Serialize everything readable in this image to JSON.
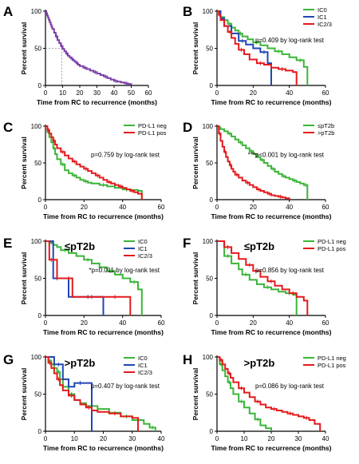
{
  "colors": {
    "purple": "#7b3fa6",
    "green": "#3bb539",
    "blue": "#2146b4",
    "red": "#e41a1c",
    "axis": "#000000",
    "guide": "#888888"
  },
  "chart_data": [
    {
      "type": "line",
      "letter": "A",
      "title": "",
      "subtitle": "",
      "xlabel": "Time from RC to recurrence (months)",
      "ylabel": "Percent survival",
      "xlim": [
        0,
        60
      ],
      "ylim": [
        0,
        100
      ],
      "xticks": [
        "0",
        "10",
        "20",
        "30",
        "40",
        "50",
        "60"
      ],
      "yticks": [
        "0",
        "50",
        "100"
      ],
      "legend": [],
      "annotation": "",
      "series": [
        {
          "name": "",
          "color": "purple",
          "x": [
            0,
            0.5,
            1,
            1.5,
            2,
            2.5,
            3,
            3.5,
            4,
            5,
            6,
            7,
            8,
            9,
            10,
            11,
            12,
            13,
            14,
            15,
            16,
            17,
            18,
            19,
            20,
            22,
            24,
            26,
            28,
            30,
            32,
            34,
            36,
            38,
            40,
            42,
            44,
            46,
            48,
            50
          ],
          "y": [
            100,
            97,
            94,
            91,
            88,
            85,
            82,
            79,
            76,
            71,
            66,
            61,
            57,
            53,
            49,
            46,
            43,
            40,
            38,
            36,
            34,
            32,
            30,
            28,
            26,
            24,
            22,
            20,
            18,
            16,
            14,
            12,
            10,
            8,
            6,
            5,
            4,
            3,
            2,
            0
          ]
        }
      ],
      "median_guide": {
        "x": 9.5,
        "y": 50
      }
    },
    {
      "type": "line",
      "letter": "B",
      "title": "",
      "subtitle": "",
      "xlabel": "Time from RC to recurrence (months)",
      "ylabel": "Percent survival",
      "xlim": [
        0,
        60
      ],
      "ylim": [
        0,
        100
      ],
      "xticks": [
        "0",
        "20",
        "40",
        "60"
      ],
      "yticks": [
        "0",
        "50",
        "100"
      ],
      "legend": [
        "IC0",
        "IC1",
        "IC2/3"
      ],
      "annotation": "p=0.409 by log-rank test",
      "series": [
        {
          "name": "IC0",
          "color": "green",
          "x": [
            0,
            1,
            2,
            4,
            6,
            8,
            10,
            12,
            14,
            17,
            20,
            24,
            28,
            32,
            36,
            40,
            44,
            48,
            50
          ],
          "y": [
            100,
            96,
            92,
            88,
            83,
            78,
            74,
            70,
            66,
            62,
            58,
            54,
            50,
            46,
            42,
            38,
            34,
            25,
            0
          ]
        },
        {
          "name": "IC1",
          "color": "blue",
          "x": [
            0,
            2,
            4,
            8,
            12,
            16,
            20,
            24,
            28,
            30
          ],
          "y": [
            100,
            90,
            80,
            70,
            60,
            55,
            50,
            45,
            30,
            0
          ]
        },
        {
          "name": "IC2/3",
          "color": "red",
          "x": [
            0,
            1,
            2,
            4,
            6,
            8,
            10,
            12,
            15,
            18,
            22,
            26,
            30,
            34,
            38,
            42,
            44
          ],
          "y": [
            100,
            95,
            88,
            80,
            72,
            64,
            56,
            48,
            42,
            35,
            30,
            28,
            24,
            22,
            20,
            18,
            0
          ]
        }
      ]
    },
    {
      "type": "line",
      "letter": "C",
      "title": "",
      "subtitle": "",
      "xlabel": "Time from RC to recurrence (months)",
      "ylabel": "Percent survival",
      "xlim": [
        0,
        60
      ],
      "ylim": [
        0,
        100
      ],
      "xticks": [
        "0",
        "20",
        "40",
        "60"
      ],
      "yticks": [
        "0",
        "50",
        "100"
      ],
      "legend": [
        "PD-L1 neg",
        "PD-L1 pos"
      ],
      "annotation": "p=0.759 by log-rank test",
      "series": [
        {
          "name": "PD-L1 neg",
          "color": "green",
          "x": [
            0,
            1,
            2,
            3,
            4,
            5,
            6,
            8,
            10,
            12,
            14,
            16,
            18,
            20,
            22,
            24,
            28,
            32,
            36,
            40,
            44,
            48,
            50
          ],
          "y": [
            100,
            92,
            85,
            78,
            70,
            62,
            55,
            48,
            40,
            36,
            33,
            30,
            27,
            25,
            23,
            22,
            20,
            18,
            16,
            14,
            13,
            12,
            0
          ]
        },
        {
          "name": "PD-L1 pos",
          "color": "red",
          "x": [
            0,
            1,
            2,
            3,
            4,
            5,
            6,
            8,
            10,
            12,
            14,
            16,
            18,
            20,
            22,
            24,
            26,
            28,
            30,
            32,
            34,
            36,
            38,
            40,
            42,
            44,
            46,
            48,
            50
          ],
          "y": [
            100,
            95,
            90,
            85,
            80,
            75,
            70,
            65,
            60,
            56,
            52,
            48,
            45,
            42,
            39,
            36,
            33,
            30,
            27,
            24,
            22,
            20,
            18,
            16,
            14,
            12,
            10,
            8,
            0
          ]
        }
      ]
    },
    {
      "type": "line",
      "letter": "D",
      "title": "",
      "subtitle": "",
      "xlabel": "Time from RC to recurrence (months)",
      "ylabel": "Percent survival",
      "xlim": [
        0,
        60
      ],
      "ylim": [
        0,
        100
      ],
      "xticks": [
        "0",
        "20",
        "40",
        "60"
      ],
      "yticks": [
        "0",
        "50",
        "100"
      ],
      "legend": [
        "≤pT2b",
        ">pT2b"
      ],
      "annotation": "***p<0.001 by log-rank test",
      "series": [
        {
          "name": "≤pT2b",
          "color": "green",
          "x": [
            0,
            1,
            2,
            4,
            6,
            8,
            10,
            12,
            14,
            16,
            18,
            20,
            22,
            24,
            26,
            28,
            30,
            32,
            34,
            36,
            38,
            40,
            42,
            44,
            46,
            48,
            50
          ],
          "y": [
            100,
            98,
            96,
            93,
            90,
            86,
            82,
            78,
            74,
            70,
            66,
            62,
            58,
            54,
            50,
            46,
            42,
            38,
            35,
            32,
            30,
            28,
            26,
            24,
            22,
            20,
            0
          ]
        },
        {
          "name": ">pT2b",
          "color": "red",
          "x": [
            0,
            1,
            2,
            3,
            4,
            5,
            6,
            7,
            8,
            9,
            10,
            12,
            14,
            16,
            18,
            20,
            22,
            24,
            26,
            28,
            30,
            32,
            34,
            36,
            38,
            40
          ],
          "y": [
            100,
            90,
            80,
            72,
            65,
            58,
            52,
            47,
            42,
            38,
            34,
            30,
            26,
            23,
            20,
            17,
            14,
            12,
            10,
            8,
            6,
            5,
            4,
            3,
            2,
            0
          ]
        }
      ]
    },
    {
      "type": "line",
      "letter": "E",
      "title": "≤pT2b",
      "subtitle": "",
      "xlabel": "Time from RC to recurrence (months)",
      "ylabel": "Percent survival",
      "xlim": [
        0,
        60
      ],
      "ylim": [
        0,
        100
      ],
      "xticks": [
        "0",
        "20",
        "40",
        "60"
      ],
      "yticks": [
        "0",
        "50",
        "100"
      ],
      "legend": [
        "IC0",
        "IC1",
        "IC2/3"
      ],
      "annotation": "*p=0.011 by log-rank test",
      "series": [
        {
          "name": "IC0",
          "color": "green",
          "x": [
            0,
            2,
            4,
            6,
            8,
            12,
            16,
            20,
            24,
            28,
            32,
            36,
            40,
            44,
            48,
            50
          ],
          "y": [
            100,
            98,
            95,
            92,
            88,
            84,
            80,
            75,
            70,
            65,
            60,
            55,
            50,
            45,
            35,
            0
          ]
        },
        {
          "name": "IC1",
          "color": "blue",
          "x": [
            0,
            4,
            8,
            12,
            20,
            24,
            30
          ],
          "y": [
            100,
            50,
            50,
            25,
            25,
            25,
            0
          ]
        },
        {
          "name": "IC2/3",
          "color": "red",
          "x": [
            0,
            2,
            4,
            6,
            10,
            14,
            18,
            22,
            26,
            30,
            34,
            38,
            42,
            44
          ],
          "y": [
            100,
            75,
            75,
            50,
            50,
            25,
            25,
            25,
            25,
            25,
            25,
            25,
            25,
            0
          ]
        }
      ]
    },
    {
      "type": "line",
      "letter": "F",
      "title": "≤pT2b",
      "subtitle": "",
      "xlabel": "Time from RC to recurrence (months)",
      "ylabel": "Percent survival",
      "xlim": [
        0,
        60
      ],
      "ylim": [
        0,
        100
      ],
      "xticks": [
        "0",
        "20",
        "40",
        "60"
      ],
      "yticks": [
        "0",
        "50",
        "100"
      ],
      "legend": [
        "PD-L1 neg",
        "PD-L1 pos"
      ],
      "annotation": "p=0.856 by log-rank test",
      "series": [
        {
          "name": "PD-L1 neg",
          "color": "green",
          "x": [
            0,
            4,
            8,
            12,
            14,
            18,
            22,
            26,
            30,
            34,
            38,
            42,
            44
          ],
          "y": [
            100,
            80,
            70,
            62,
            55,
            48,
            42,
            38,
            35,
            32,
            30,
            28,
            0
          ]
        },
        {
          "name": "PD-L1 pos",
          "color": "red",
          "x": [
            0,
            4,
            8,
            12,
            16,
            20,
            24,
            28,
            32,
            36,
            40,
            44,
            48,
            50
          ],
          "y": [
            100,
            92,
            84,
            76,
            68,
            60,
            52,
            46,
            40,
            35,
            30,
            25,
            20,
            0
          ]
        }
      ]
    },
    {
      "type": "line",
      "letter": "G",
      "title": ">pT2b",
      "subtitle": "",
      "xlabel": "Time from RC to recurrence (months)",
      "ylabel": "Percent survival",
      "xlim": [
        0,
        40
      ],
      "ylim": [
        0,
        100
      ],
      "xticks": [
        "0",
        "10",
        "20",
        "30",
        "40"
      ],
      "yticks": [
        "0",
        "50",
        "100"
      ],
      "legend": [
        "IC0",
        "IC1",
        "IC2/3"
      ],
      "annotation": "p=0.407 by log-rank test",
      "series": [
        {
          "name": "IC0",
          "color": "green",
          "x": [
            0,
            1,
            2,
            3,
            4,
            5,
            6,
            8,
            10,
            12,
            14,
            18,
            22,
            26,
            30,
            34,
            36,
            38
          ],
          "y": [
            100,
            95,
            90,
            85,
            80,
            70,
            60,
            50,
            42,
            38,
            34,
            30,
            25,
            20,
            15,
            10,
            5,
            0
          ]
        },
        {
          "name": "IC1",
          "color": "blue",
          "x": [
            0,
            3,
            6,
            8,
            10,
            14,
            16
          ],
          "y": [
            100,
            90,
            70,
            60,
            65,
            65,
            0
          ]
        },
        {
          "name": "IC2/3",
          "color": "red",
          "x": [
            0,
            1,
            2,
            3,
            4,
            5,
            6,
            8,
            10,
            12,
            14,
            16,
            18,
            22,
            26,
            30,
            32
          ],
          "y": [
            100,
            92,
            85,
            78,
            70,
            62,
            55,
            48,
            42,
            36,
            32,
            28,
            26,
            24,
            20,
            18,
            0
          ]
        }
      ]
    },
    {
      "type": "line",
      "letter": "H",
      "title": ">pT2b",
      "subtitle": "",
      "xlabel": "Time from RC to recurrence (months)",
      "ylabel": "Percent survival",
      "xlim": [
        0,
        40
      ],
      "ylim": [
        0,
        100
      ],
      "xticks": [
        "0",
        "10",
        "20",
        "30",
        "40"
      ],
      "yticks": [
        "0",
        "50",
        "100"
      ],
      "legend": [
        "PD-L1 neg",
        "PD-L1 pos"
      ],
      "annotation": "p=0.086 by log-rank test",
      "series": [
        {
          "name": "PD-L1 neg",
          "color": "green",
          "x": [
            0,
            1,
            2,
            3,
            4,
            5,
            6,
            8,
            10,
            12,
            14,
            16,
            18,
            20
          ],
          "y": [
            100,
            90,
            82,
            74,
            66,
            58,
            50,
            40,
            32,
            24,
            16,
            8,
            4,
            0
          ]
        },
        {
          "name": "PD-L1 pos",
          "color": "red",
          "x": [
            0,
            1,
            2,
            3,
            4,
            5,
            6,
            8,
            10,
            12,
            14,
            16,
            18,
            20,
            22,
            24,
            26,
            28,
            30,
            32,
            34,
            36,
            38
          ],
          "y": [
            100,
            96,
            90,
            84,
            78,
            72,
            66,
            58,
            52,
            46,
            40,
            36,
            32,
            30,
            28,
            26,
            24,
            22,
            20,
            18,
            15,
            10,
            0
          ]
        }
      ]
    }
  ]
}
